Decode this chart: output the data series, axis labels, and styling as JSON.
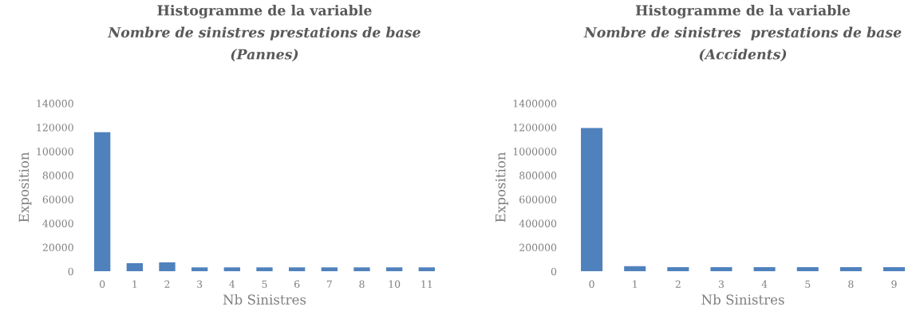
{
  "chart_data": [
    {
      "type": "bar",
      "title": "Histogramme de la variable\nNombre de sinistres prestations de base\n(Pannes)",
      "xlabel": "Nb Sinistres",
      "ylabel": "Exposition",
      "categories": [
        "0",
        "1",
        "2",
        "3",
        "4",
        "5",
        "6",
        "7",
        "8",
        "10",
        "11"
      ],
      "values": [
        116000,
        6800,
        7500,
        3300,
        3300,
        3300,
        3300,
        3300,
        3300,
        3300,
        3300
      ],
      "color": "#4f81bd",
      "ylim": [
        0,
        140000
      ],
      "yticks": [
        0,
        20000,
        40000,
        60000,
        80000,
        100000,
        120000,
        140000
      ],
      "grid": false
    },
    {
      "type": "bar",
      "title": "Histogramme de la variable\nNombre de sinistres  prestations de base\n(Accidents)",
      "xlabel": "Nb Sinistres",
      "ylabel": "Exposition",
      "categories": [
        "0",
        "1",
        "2",
        "3",
        "4",
        "5",
        "8",
        "9"
      ],
      "values": [
        1195000,
        43000,
        35000,
        35000,
        35000,
        35000,
        35000,
        35000
      ],
      "color": "#4f81bd",
      "ylim": [
        0,
        1400000
      ],
      "yticks": [
        0,
        200000,
        400000,
        600000,
        800000,
        1000000,
        1200000,
        1400000
      ],
      "grid": false
    }
  ]
}
